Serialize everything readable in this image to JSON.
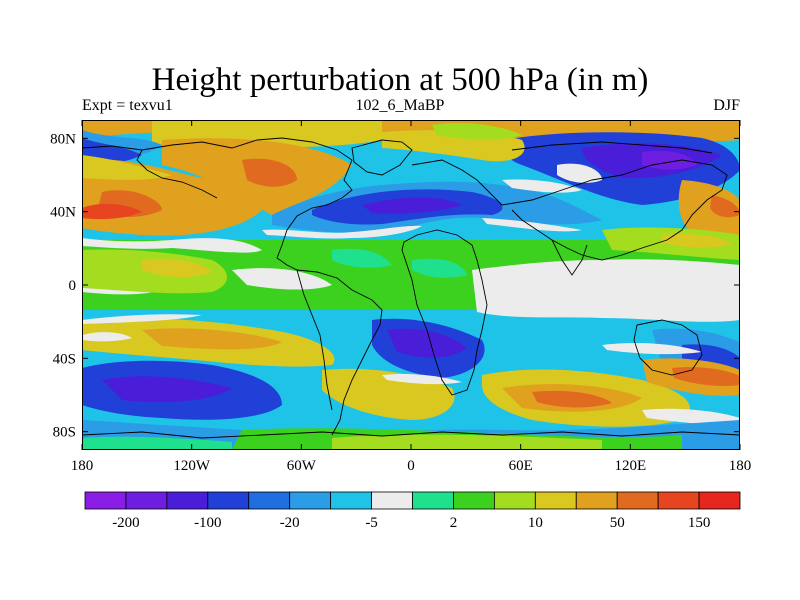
{
  "title": "Height perturbation at 500 hPa (in m)",
  "subtitle_left": "Expt = texvu1",
  "subtitle_center": "102_6_MaBP",
  "subtitle_right": "DJF",
  "lat_ticks": [
    "80N",
    "40N",
    "0",
    "40S",
    "80S"
  ],
  "lon_ticks": [
    "180",
    "120W",
    "60W",
    "0",
    "60E",
    "120E",
    "180"
  ],
  "colorbar": {
    "colors": [
      "#8a1ee6",
      "#6e1ee0",
      "#4a1ed8",
      "#2140d8",
      "#1f6fe0",
      "#2b9ce6",
      "#1fc3e8",
      "#ececec",
      "#1fe08c",
      "#3dd11f",
      "#a4dc1f",
      "#d9c81f",
      "#e0a11f",
      "#e06a1f",
      "#e6451f",
      "#e6261f"
    ],
    "labels": [
      "-200",
      "-100",
      "-20",
      "-5",
      "2",
      "10",
      "50",
      "150"
    ]
  },
  "palette": {
    "violet": "#8a1ee6",
    "purple": "#6e1ee0",
    "indigo": "#4a1ed8",
    "blue": "#2140d8",
    "mid_blue": "#1f6fe0",
    "light_blue": "#2b9ce6",
    "cyan": "#1fc3e8",
    "white": "#ececec",
    "teal": "#1fe08c",
    "green": "#3dd11f",
    "yellow_green": "#a4dc1f",
    "yellow": "#d9c81f",
    "orange": "#e0a11f",
    "dark_orange": "#e06a1f",
    "red_orange": "#e6451f",
    "red": "#e6261f"
  }
}
